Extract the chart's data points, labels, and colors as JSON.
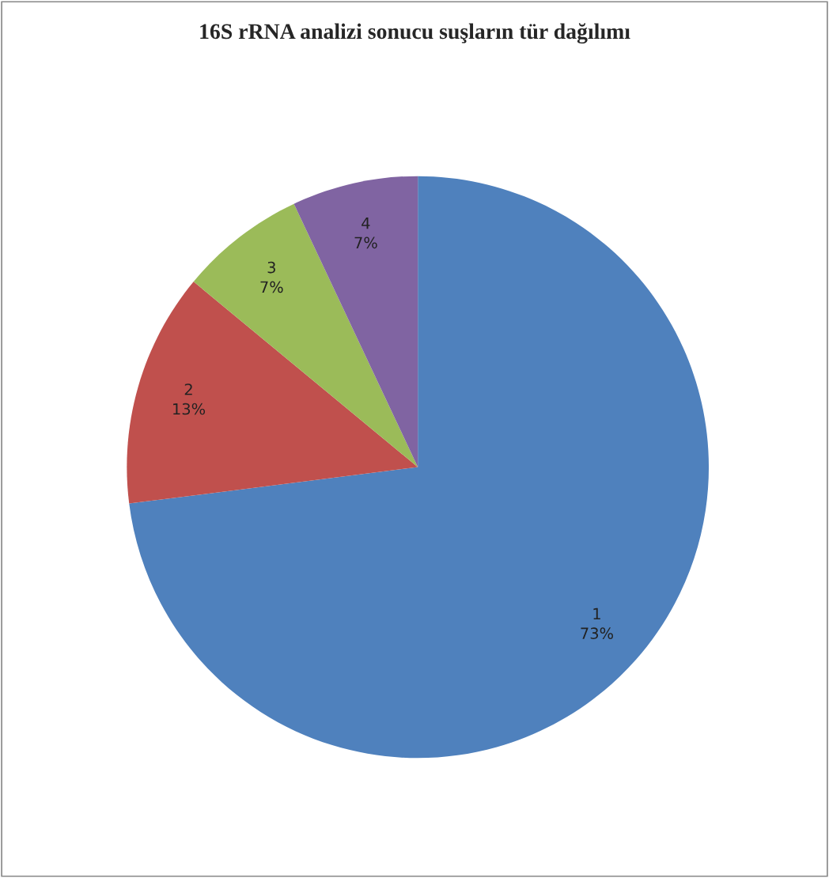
{
  "chart_data": {
    "type": "pie",
    "title": "16S rRNA analizi sonucu suşların tür dağılımı",
    "categories": [
      "1",
      "2",
      "3",
      "4"
    ],
    "values": [
      73,
      13,
      7,
      7
    ],
    "value_labels": [
      "73%",
      "13%",
      "7%",
      "7%"
    ],
    "colors": [
      "#4f81bd",
      "#c0504d",
      "#9bbb59",
      "#8064a2"
    ],
    "legend": false
  }
}
